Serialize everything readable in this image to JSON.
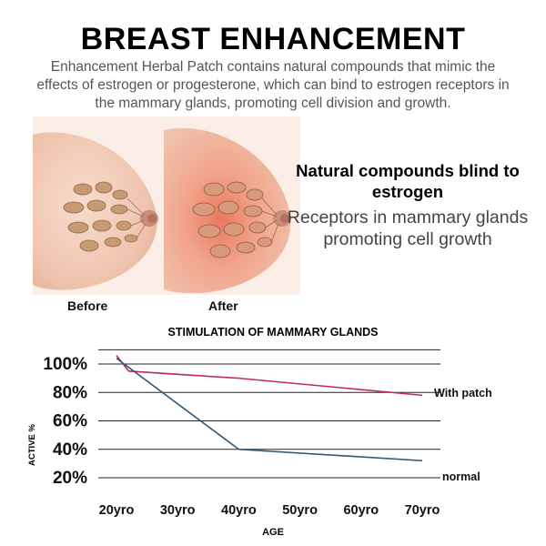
{
  "header": {
    "title": "BREAST ENHANCEMENT",
    "subtitle": "Enhancement Herbal Patch contains natural compounds that mimic the effects of estrogen or progesterone, which can bind to estrogen receptors in the mammary glands, promoting cell division and growth."
  },
  "illustrations": {
    "before_caption": "Before",
    "after_caption": "After"
  },
  "info": {
    "heading": "Natural compounds blind to estrogen",
    "body": "Receptors in mammary glands promoting cell growth"
  },
  "colors": {
    "with_patch": "#c2285e",
    "normal": "#2f5675",
    "grid": "#222222"
  },
  "chart_data": {
    "type": "line",
    "title": "STIMULATION OF MAMMARY GLANDS",
    "xlabel": "AGE",
    "ylabel": "ACTIVE %",
    "categories": [
      "20yro",
      "30yro",
      "40yro",
      "50yro",
      "60yro",
      "70yro"
    ],
    "x": [
      20,
      30,
      40,
      50,
      60,
      70
    ],
    "yticks": [
      "20%",
      "40%",
      "60%",
      "80%",
      "100%"
    ],
    "ylim": [
      20,
      110
    ],
    "grid": true,
    "series": [
      {
        "name": "With patch",
        "x": [
          20,
          22,
          40,
          70
        ],
        "values": [
          106,
          95,
          90,
          78
        ]
      },
      {
        "name": "normal",
        "x": [
          20,
          40,
          70
        ],
        "values": [
          104,
          40,
          32
        ]
      }
    ]
  }
}
